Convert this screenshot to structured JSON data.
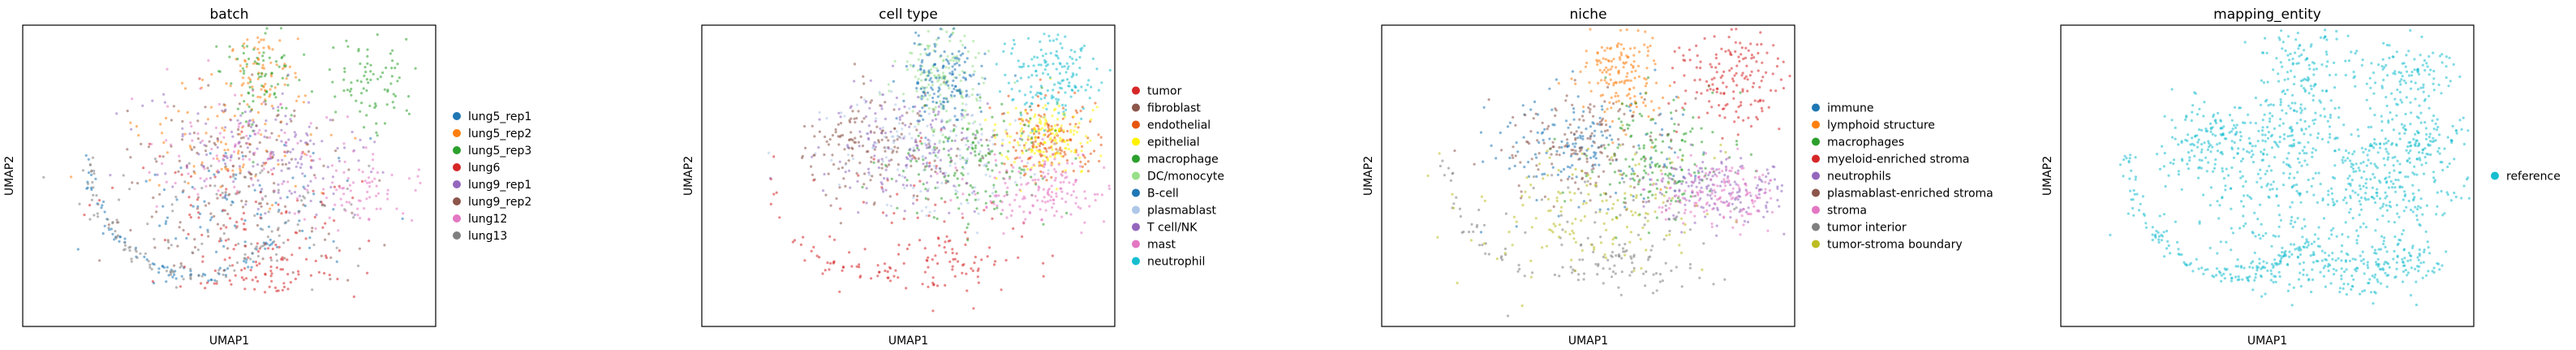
{
  "chart_data": [
    {
      "type": "scatter",
      "title": "batch",
      "xlabel": "UMAP1",
      "ylabel": "UMAP2",
      "grid": false,
      "legend_placement": "right",
      "categories": [
        "lung5_rep1",
        "lung5_rep2",
        "lung5_rep3",
        "lung6",
        "lung9_rep1",
        "lung9_rep2",
        "lung12",
        "lung13"
      ],
      "colors": [
        "#1f77b4",
        "#ff7f0e",
        "#2ca02c",
        "#d62728",
        "#9467bd",
        "#8c564b",
        "#e377c2",
        "#7f7f7f"
      ]
    },
    {
      "type": "scatter",
      "title": "cell type",
      "xlabel": "UMAP1",
      "ylabel": "UMAP2",
      "grid": false,
      "legend_placement": "right",
      "categories": [
        "tumor",
        "fibroblast",
        "endothelial",
        "epithelial",
        "macrophage",
        "DC/monocyte",
        "B-cell",
        "plasmablast",
        "T cell/NK",
        "mast",
        "neutrophil"
      ],
      "colors": [
        "#d62728",
        "#8c564b",
        "#e6550d",
        "#fff200",
        "#2ca02c",
        "#98df8a",
        "#1f77b4",
        "#aec7e8",
        "#9467bd",
        "#e377c2",
        "#17becf"
      ]
    },
    {
      "type": "scatter",
      "title": "niche",
      "xlabel": "UMAP1",
      "ylabel": "UMAP2",
      "grid": false,
      "legend_placement": "right",
      "categories": [
        "immune",
        "lymphoid structure",
        "macrophages",
        "myeloid-enriched stroma",
        "neutrophils",
        "plasmablast-enriched stroma",
        "stroma",
        "tumor interior",
        "tumor-stroma boundary"
      ],
      "colors": [
        "#1f77b4",
        "#ff7f0e",
        "#2ca02c",
        "#d62728",
        "#9467bd",
        "#8c564b",
        "#e377c2",
        "#7f7f7f",
        "#bcbd22"
      ]
    },
    {
      "type": "scatter",
      "title": "mapping_entity",
      "xlabel": "UMAP1",
      "ylabel": "UMAP2",
      "grid": false,
      "legend_placement": "right",
      "categories": [
        "reference"
      ],
      "colors": [
        "#17becf"
      ]
    }
  ]
}
